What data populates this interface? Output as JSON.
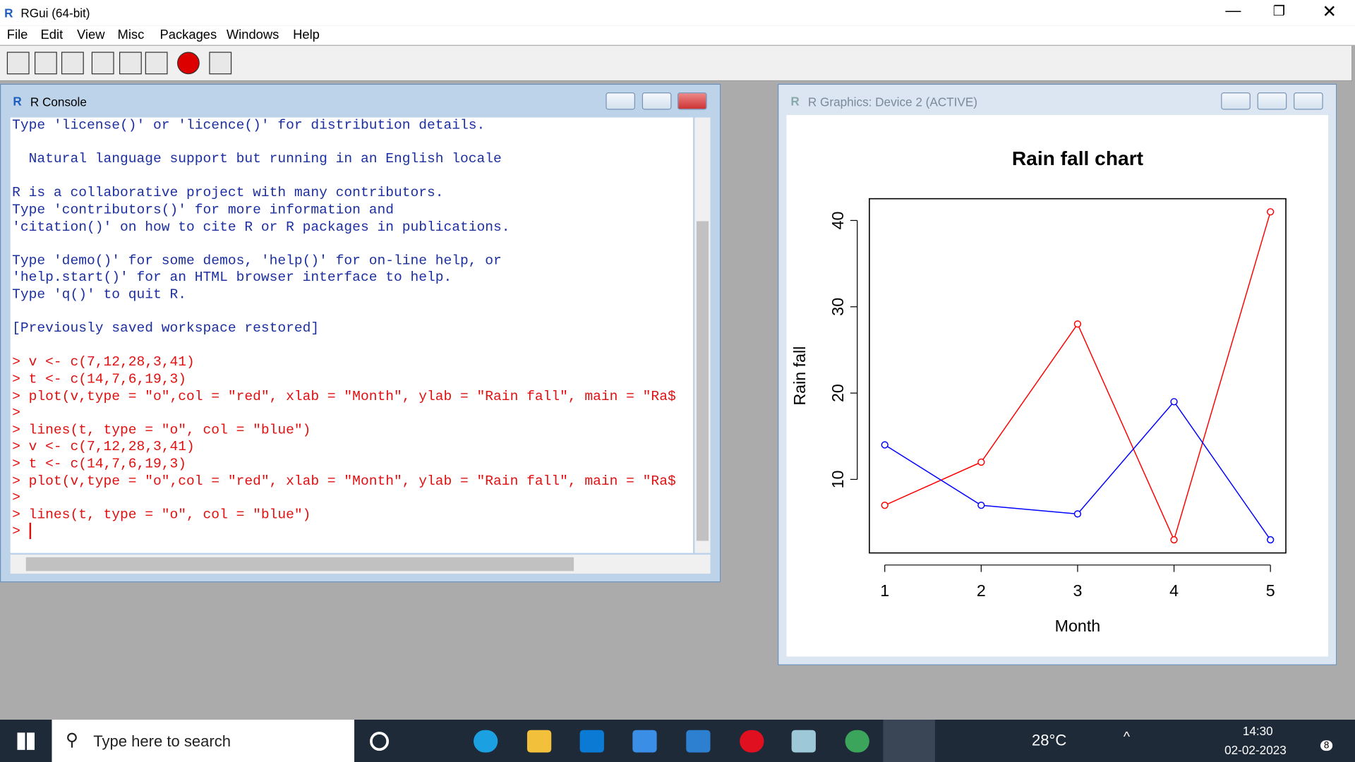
{
  "app": {
    "title": "RGui (64-bit)",
    "menu": [
      "File",
      "Edit",
      "View",
      "Misc",
      "Packages",
      "Windows",
      "Help"
    ]
  },
  "console": {
    "title": "R Console",
    "output": [
      [
        "Type 'license()' or 'licence()' for distribution details."
      ],
      [
        "  Natural language support but running in an English locale"
      ],
      [
        "R is a collaborative project with many contributors.",
        "Type 'contributors()' for more information and",
        "'citation()' on how to cite R or R packages in publications."
      ],
      [
        "Type 'demo()' for some demos, 'help()' for on-line help, or",
        "'help.start()' for an HTML browser interface to help.",
        "Type 'q()' to quit R."
      ],
      [
        "[Previously saved workspace restored]"
      ]
    ],
    "input": [
      "> v <- c(7,12,28,3,41)",
      "> t <- c(14,7,6,19,3)",
      "> plot(v,type = \"o\",col = \"red\", xlab = \"Month\", ylab = \"Rain fall\", main = \"Ra$",
      ">",
      "> lines(t, type = \"o\", col = \"blue\")",
      "> v <- c(7,12,28,3,41)",
      "> t <- c(14,7,6,19,3)",
      "> plot(v,type = \"o\",col = \"red\", xlab = \"Month\", ylab = \"Rain fall\", main = \"Ra$",
      ">",
      "> lines(t, type = \"o\", col = \"blue\")",
      ">"
    ]
  },
  "graphics": {
    "title": "R Graphics: Device 2 (ACTIVE)",
    "chart": {
      "type": "line",
      "title": "Rain fall chart",
      "xlabel": "Month",
      "ylabel": "Rain fall",
      "x": [
        1,
        2,
        3,
        4,
        5
      ],
      "series": [
        {
          "color": "#ff0000",
          "values": [
            7,
            12,
            28,
            3,
            41
          ]
        },
        {
          "color": "#0000ff",
          "values": [
            14,
            7,
            6,
            19,
            3
          ]
        }
      ],
      "xlim": [
        0.84,
        5.16
      ],
      "ylim": [
        1.48,
        42.52
      ],
      "xticks": [
        1,
        2,
        3,
        4,
        5
      ],
      "yticks": [
        10,
        20,
        30,
        40
      ],
      "markers": true
    }
  },
  "taskbar": {
    "search": "Type here to search",
    "weather": "28°C",
    "time": "14:30",
    "date": "02-02-2023",
    "notifications": "8"
  }
}
